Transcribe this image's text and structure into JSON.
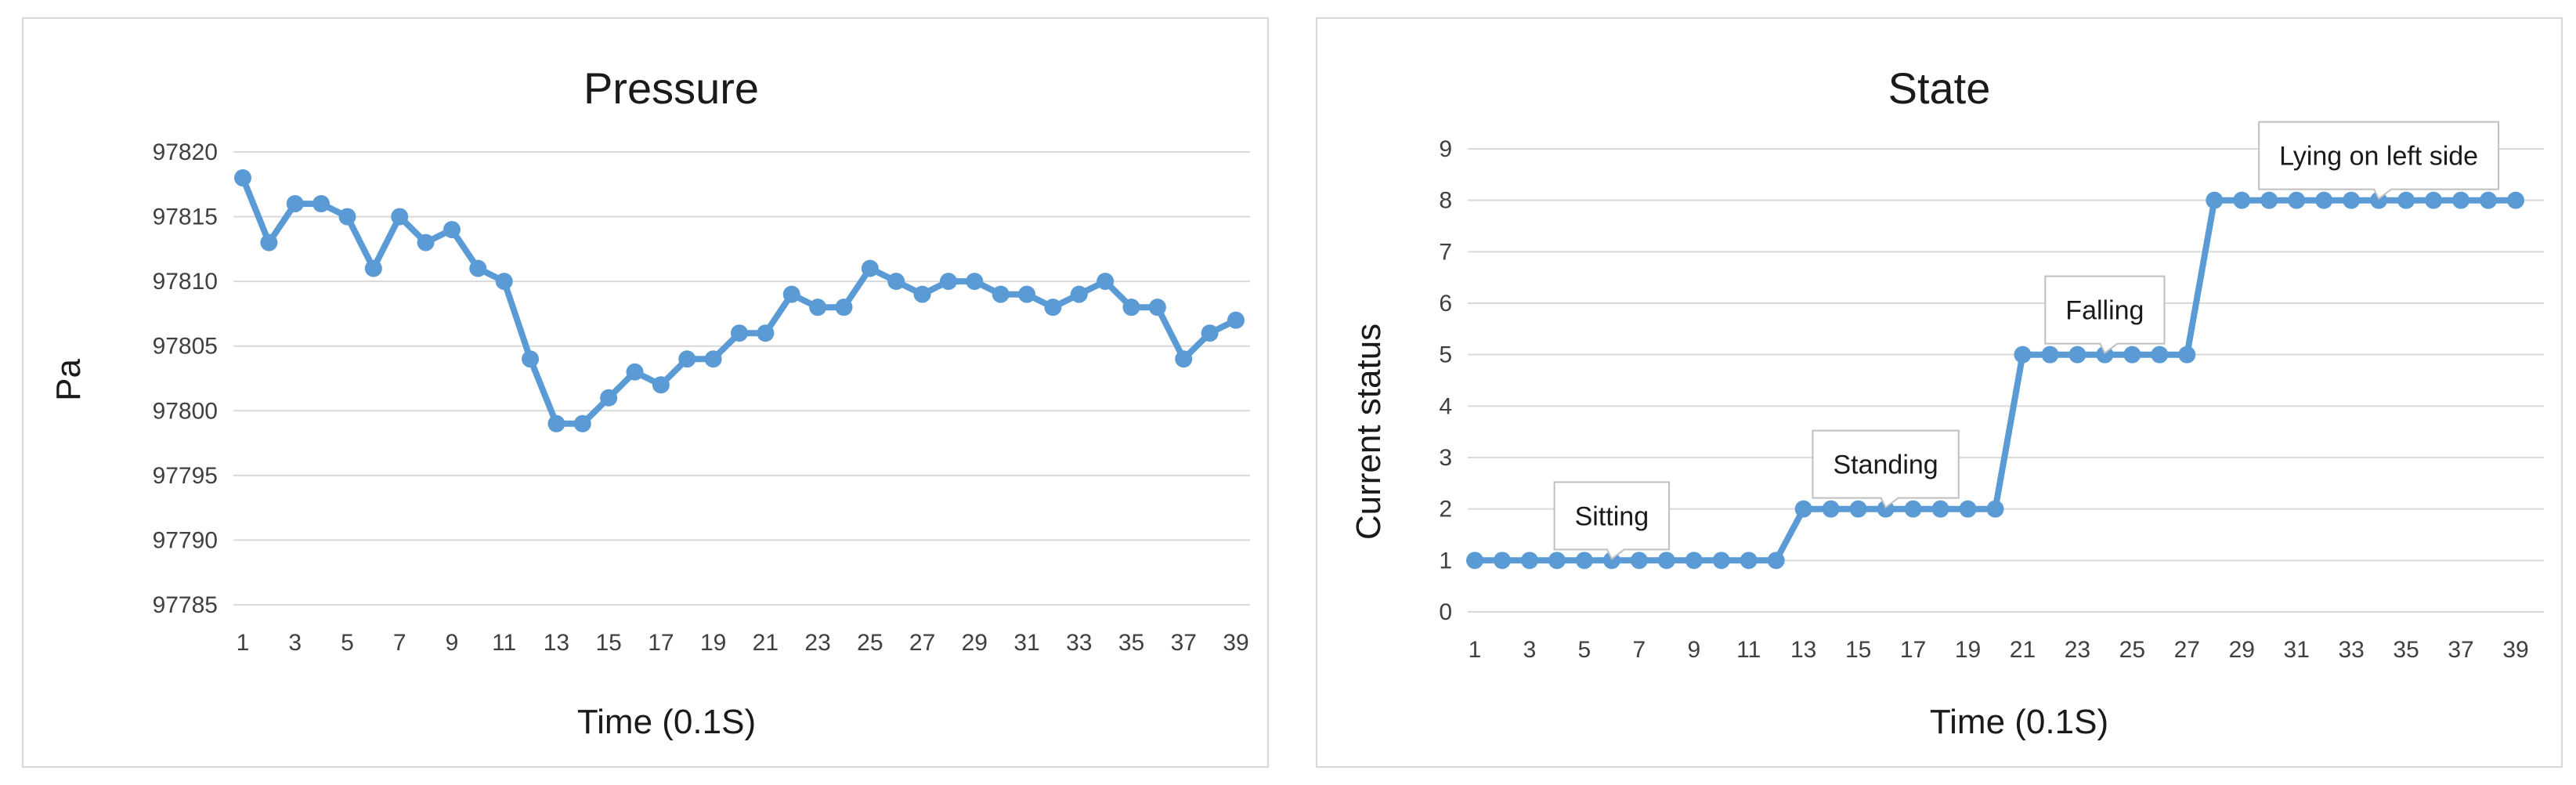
{
  "chart_data": [
    {
      "type": "line",
      "title": "Pressure",
      "xlabel": "Time (0.1S)",
      "ylabel": "Pa",
      "ylim": [
        97785,
        97820
      ],
      "yticks": [
        97785,
        97790,
        97795,
        97800,
        97805,
        97810,
        97815,
        97820
      ],
      "x": [
        1,
        2,
        3,
        4,
        5,
        6,
        7,
        8,
        9,
        10,
        11,
        12,
        13,
        14,
        15,
        16,
        17,
        18,
        19,
        20,
        21,
        22,
        23,
        24,
        25,
        26,
        27,
        28,
        29,
        30,
        31,
        32,
        33,
        34,
        35,
        36,
        37,
        38,
        39
      ],
      "xtick_labels": [
        "1",
        "3",
        "5",
        "7",
        "9",
        "11",
        "13",
        "15",
        "17",
        "19",
        "21",
        "23",
        "25",
        "27",
        "29",
        "31",
        "33",
        "35",
        "37",
        "39"
      ],
      "series": [
        {
          "values": [
            97818,
            97813,
            97816,
            97816,
            97815,
            97811,
            97815,
            97813,
            97814,
            97811,
            97810,
            97804,
            97799,
            97799,
            97801,
            97803,
            97802,
            97804,
            97804,
            97806,
            97806,
            97809,
            97808,
            97808,
            97811,
            97810,
            97809,
            97810,
            97810,
            97809,
            97809,
            97808,
            97809,
            97810,
            97808,
            97808,
            97804,
            97806,
            97807
          ]
        }
      ],
      "grid": true,
      "color": "#5b9bd5"
    },
    {
      "type": "line",
      "title": "State",
      "xlabel": "Time (0.1S)",
      "ylabel": "Current status",
      "ylim": [
        0,
        9
      ],
      "yticks": [
        0,
        1,
        2,
        3,
        4,
        5,
        6,
        7,
        8,
        9
      ],
      "x": [
        1,
        2,
        3,
        4,
        5,
        6,
        7,
        8,
        9,
        10,
        11,
        12,
        13,
        14,
        15,
        16,
        17,
        18,
        19,
        20,
        21,
        22,
        23,
        24,
        25,
        26,
        27,
        28,
        29,
        30,
        31,
        32,
        33,
        34,
        35,
        36,
        37,
        38,
        39
      ],
      "xtick_labels": [
        "1",
        "3",
        "5",
        "7",
        "9",
        "11",
        "13",
        "15",
        "17",
        "19",
        "21",
        "23",
        "25",
        "27",
        "29",
        "31",
        "33",
        "35",
        "37",
        "39"
      ],
      "series": [
        {
          "values": [
            1,
            1,
            1,
            1,
            1,
            1,
            1,
            1,
            1,
            1,
            1,
            1,
            2,
            2,
            2,
            2,
            2,
            2,
            2,
            2,
            5,
            5,
            5,
            5,
            5,
            5,
            5,
            8,
            8,
            8,
            8,
            8,
            8,
            8,
            8,
            8,
            8,
            8,
            8
          ]
        }
      ],
      "annotations": [
        {
          "text": "Sitting",
          "x": 6,
          "y": 1
        },
        {
          "text": "Standing",
          "x": 16,
          "y": 2
        },
        {
          "text": "Falling",
          "x": 24,
          "y": 5
        },
        {
          "text": "Lying on left side",
          "x": 34,
          "y": 8
        }
      ],
      "grid": true,
      "color": "#5b9bd5"
    }
  ]
}
